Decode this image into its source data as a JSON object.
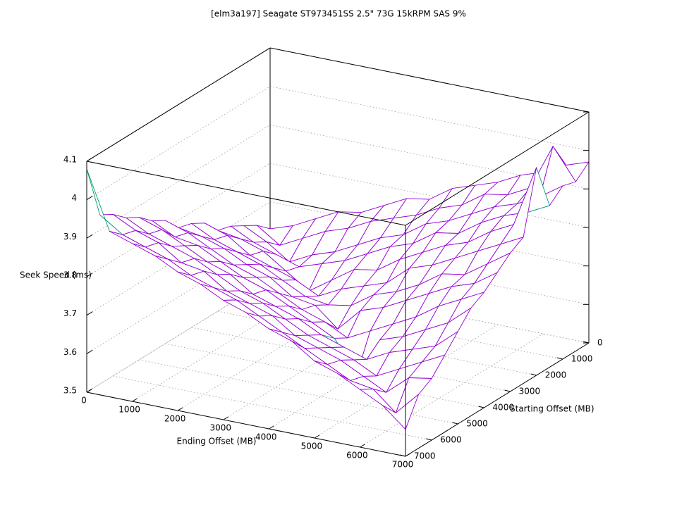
{
  "chart_data": {
    "type": "surface3d",
    "title": "[elm3a197] Seagate ST973451SS 2.5\" 73G 15kRPM SAS 9%",
    "x_label": "Ending Offset (MB)",
    "y_label": "Starting Offset (MB)",
    "z_label": "Seek Speed (ms)",
    "color": "#9400d3",
    "underside_color": "#009e73",
    "grid": true,
    "x": [
      0,
      500,
      1000,
      1500,
      2000,
      2500,
      3000,
      3500,
      4000,
      4500,
      5000,
      5500,
      6000,
      6500,
      7000
    ],
    "y": [
      0,
      500,
      1000,
      1500,
      2000,
      2500,
      3000,
      3500,
      4000,
      4500,
      5000,
      5500,
      6000,
      6500,
      7000
    ],
    "z": [
      [
        3.63,
        3.65,
        3.68,
        3.71,
        3.72,
        3.75,
        3.78,
        3.79,
        3.83,
        3.85,
        3.87,
        3.9,
        3.92,
        3.95,
        3.97
      ],
      [
        3.66,
        3.62,
        3.65,
        3.68,
        3.7,
        3.73,
        3.75,
        3.77,
        3.8,
        3.82,
        3.86,
        3.87,
        3.9,
        4.02,
        3.94
      ],
      [
        3.68,
        3.65,
        3.61,
        3.64,
        3.66,
        3.69,
        3.72,
        3.74,
        3.78,
        3.8,
        3.83,
        3.86,
        3.88,
        3.91,
        3.95
      ],
      [
        3.7,
        3.67,
        3.65,
        3.63,
        3.65,
        3.67,
        3.7,
        3.73,
        3.75,
        3.79,
        3.8,
        3.84,
        3.87,
        3.89,
        3.92
      ],
      [
        3.71,
        3.7,
        3.68,
        3.64,
        3.6,
        3.64,
        3.68,
        3.69,
        3.73,
        3.76,
        3.79,
        3.81,
        3.85,
        3.88,
        4.04
      ],
      [
        3.75,
        3.73,
        3.69,
        3.67,
        3.65,
        3.62,
        3.65,
        3.67,
        3.69,
        3.74,
        3.76,
        3.79,
        3.82,
        3.85,
        3.88
      ],
      [
        3.77,
        3.74,
        3.72,
        3.7,
        3.67,
        3.64,
        3.63,
        3.64,
        3.68,
        3.7,
        3.73,
        3.77,
        3.78,
        3.82,
        3.86
      ],
      [
        3.78,
        3.77,
        3.75,
        3.72,
        3.7,
        3.66,
        3.65,
        3.6,
        3.66,
        3.68,
        3.71,
        3.74,
        3.77,
        3.79,
        3.83
      ],
      [
        3.82,
        3.8,
        3.77,
        3.74,
        3.72,
        3.69,
        3.66,
        3.64,
        3.61,
        3.64,
        3.67,
        3.7,
        3.74,
        3.77,
        3.8
      ],
      [
        3.84,
        3.81,
        3.8,
        3.77,
        3.74,
        3.72,
        3.69,
        3.66,
        3.63,
        3.55,
        3.65,
        3.67,
        3.7,
        3.73,
        3.78
      ],
      [
        3.87,
        3.85,
        3.82,
        3.79,
        3.77,
        3.73,
        3.71,
        3.69,
        3.66,
        3.64,
        3.62,
        3.65,
        3.67,
        3.69,
        3.74
      ],
      [
        3.89,
        3.86,
        3.84,
        3.82,
        3.79,
        3.76,
        3.74,
        3.71,
        3.68,
        3.66,
        3.64,
        3.61,
        3.64,
        3.67,
        3.7
      ],
      [
        3.92,
        3.89,
        3.87,
        3.83,
        3.82,
        3.78,
        3.76,
        3.74,
        3.7,
        3.68,
        3.66,
        3.63,
        3.6,
        3.65,
        3.66
      ],
      [
        3.94,
        3.9,
        3.88,
        3.86,
        3.83,
        3.81,
        3.79,
        3.76,
        3.73,
        3.7,
        3.67,
        3.64,
        3.63,
        3.58,
        3.64
      ],
      [
        4.08,
        3.93,
        3.91,
        3.89,
        3.86,
        3.84,
        3.81,
        3.79,
        3.76,
        3.74,
        3.7,
        3.68,
        3.65,
        3.62,
        3.57
      ]
    ],
    "xlim": [
      0,
      7000
    ],
    "ylim": [
      0,
      7000
    ],
    "zlim": [
      3.5,
      4.1
    ],
    "xticks": [
      0,
      1000,
      2000,
      3000,
      4000,
      5000,
      6000,
      7000
    ],
    "yticks": [
      0,
      1000,
      2000,
      3000,
      4000,
      5000,
      6000,
      7000
    ],
    "zticks": [
      3.5,
      3.6,
      3.7,
      3.8,
      3.9,
      4,
      4.1
    ]
  }
}
